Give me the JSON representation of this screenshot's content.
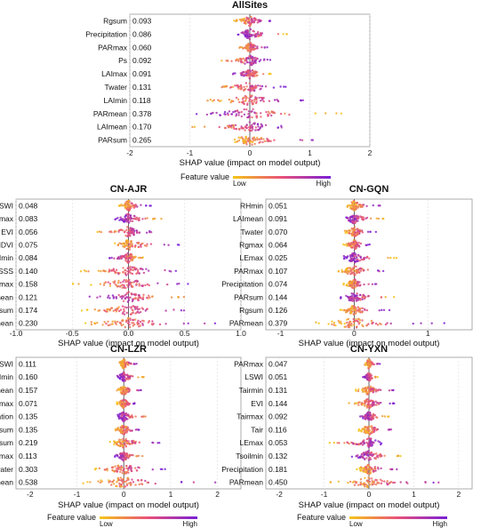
{
  "figure": {
    "xlabel": "SHAP value (impact on model output)",
    "legend_title": "Feature value",
    "legend_low": "Low",
    "legend_high": "High",
    "colors": {
      "low": "#f5c518",
      "mid": "#e8507a",
      "high": "#7a1fd6",
      "zero_line": "#555555",
      "grid": "#dddddd",
      "frame": "#999999"
    }
  },
  "chart_data": [
    {
      "type": "scatter",
      "title": "AllSites",
      "xlabel": "SHAP value (impact on model output)",
      "xlim": [
        -2,
        2
      ],
      "xticks": [
        "-2",
        "-1",
        "0",
        "1",
        "2"
      ],
      "features": [
        {
          "name": "Rgsum",
          "value": "0.093",
          "range": [
            -0.28,
            0.38
          ]
        },
        {
          "name": "Precipitation",
          "value": "0.086",
          "range": [
            -0.2,
            0.65
          ]
        },
        {
          "name": "PARmax",
          "value": "0.060",
          "range": [
            -0.18,
            0.3
          ]
        },
        {
          "name": "Ps",
          "value": "0.092",
          "range": [
            -0.6,
            0.35
          ]
        },
        {
          "name": "LAImax",
          "value": "0.091",
          "range": [
            -0.3,
            0.35
          ]
        },
        {
          "name": "Twater",
          "value": "0.131",
          "range": [
            -0.65,
            0.6
          ]
        },
        {
          "name": "LAImin",
          "value": "0.118",
          "range": [
            -0.85,
            1.0
          ]
        },
        {
          "name": "PARmean",
          "value": "0.378",
          "range": [
            -1.0,
            1.65
          ]
        },
        {
          "name": "LAImean",
          "value": "0.170",
          "range": [
            -1.0,
            0.6
          ]
        },
        {
          "name": "PARsum",
          "value": "0.265",
          "range": [
            -0.35,
            1.2
          ]
        }
      ]
    },
    {
      "type": "scatter",
      "title": "CN-AJR",
      "xlabel": "SHAP value (impact on model output)",
      "xlim": [
        -1.0,
        1.0
      ],
      "xticks": [
        "-1.0",
        "-0.5",
        "0.0",
        "0.5",
        "1.0"
      ],
      "features": [
        {
          "name": "LSWI",
          "value": "0.048",
          "range": [
            -0.1,
            0.2
          ]
        },
        {
          "name": "Tsoilmax",
          "value": "0.083",
          "range": [
            -0.12,
            0.35
          ]
        },
        {
          "name": "EVI",
          "value": "0.056",
          "range": [
            -0.3,
            0.25
          ]
        },
        {
          "name": "NDVI",
          "value": "0.075",
          "range": [
            -0.15,
            0.5
          ]
        },
        {
          "name": "LAImin",
          "value": "0.084",
          "range": [
            -0.18,
            0.15
          ]
        },
        {
          "name": "SSS",
          "value": "0.140",
          "range": [
            -0.45,
            0.45
          ]
        },
        {
          "name": "PARmax",
          "value": "0.158",
          "range": [
            -0.5,
            0.55
          ]
        },
        {
          "name": "LAImean",
          "value": "0.121",
          "range": [
            -0.35,
            0.55
          ]
        },
        {
          "name": "PARsum",
          "value": "0.174",
          "range": [
            -0.45,
            0.5
          ]
        },
        {
          "name": "PARmean",
          "value": "0.230",
          "range": [
            -0.5,
            0.8
          ]
        }
      ]
    },
    {
      "type": "scatter",
      "title": "CN-GQN",
      "xlabel": "SHAP value (impact on model output)",
      "xlim": [
        -1.2,
        1.6
      ],
      "xticks": [
        "-1",
        "0",
        "1"
      ],
      "features": [
        {
          "name": "RHmin",
          "value": "0.051",
          "range": [
            -0.1,
            0.35
          ]
        },
        {
          "name": "LAImean",
          "value": "0.091",
          "range": [
            -0.15,
            0.45
          ]
        },
        {
          "name": "Twater",
          "value": "0.070",
          "range": [
            -0.15,
            0.3
          ]
        },
        {
          "name": "Rgmax",
          "value": "0.064",
          "range": [
            -0.15,
            0.25
          ]
        },
        {
          "name": "LEmax",
          "value": "0.025",
          "range": [
            -0.15,
            0.6
          ]
        },
        {
          "name": "PARmax",
          "value": "0.107",
          "range": [
            -0.25,
            0.5
          ]
        },
        {
          "name": "Precipitation",
          "value": "0.074",
          "range": [
            -0.15,
            0.3
          ]
        },
        {
          "name": "PARsum",
          "value": "0.144",
          "range": [
            -0.2,
            0.55
          ]
        },
        {
          "name": "Rgsum",
          "value": "0.126",
          "range": [
            -0.2,
            0.5
          ]
        },
        {
          "name": "PARmean",
          "value": "0.379",
          "range": [
            -0.55,
            1.3
          ]
        }
      ]
    },
    {
      "type": "scatter",
      "title": "CN-LZR",
      "xlabel": "SHAP value (impact on model output)",
      "xlim": [
        -2.3,
        2.5
      ],
      "xticks": [
        "-2",
        "-1",
        "0",
        "1",
        "2"
      ],
      "features": [
        {
          "name": "LSWI",
          "value": "0.111",
          "range": [
            -0.1,
            0.35
          ]
        },
        {
          "name": "LAImin",
          "value": "0.160",
          "range": [
            -0.15,
            0.45
          ]
        },
        {
          "name": "LAImean",
          "value": "0.157",
          "range": [
            -0.15,
            0.4
          ]
        },
        {
          "name": "PARmax",
          "value": "0.071",
          "range": [
            -0.2,
            0.3
          ]
        },
        {
          "name": "Precipitation",
          "value": "0.135",
          "range": [
            -0.15,
            0.5
          ]
        },
        {
          "name": "Rgsum",
          "value": "0.135",
          "range": [
            -0.2,
            0.4
          ]
        },
        {
          "name": "PARsum",
          "value": "0.219",
          "range": [
            -0.3,
            0.8
          ]
        },
        {
          "name": "Rgmax",
          "value": "0.113",
          "range": [
            -0.2,
            0.4
          ]
        },
        {
          "name": "Twater",
          "value": "0.303",
          "range": [
            -0.7,
            0.9
          ]
        },
        {
          "name": "PARmean",
          "value": "0.538",
          "range": [
            -0.9,
            2.0
          ]
        }
      ]
    },
    {
      "type": "scatter",
      "title": "CN-YXN",
      "xlabel": "SHAP value (impact on model output)",
      "xlim": [
        -2.3,
        2.3
      ],
      "xticks": [
        "-2",
        "-1",
        "0",
        "1",
        "2"
      ],
      "features": [
        {
          "name": "PARmax",
          "value": "0.047",
          "range": [
            -0.1,
            0.25
          ]
        },
        {
          "name": "LSWI",
          "value": "0.051",
          "range": [
            -0.15,
            0.2
          ]
        },
        {
          "name": "Tairmin",
          "value": "0.131",
          "range": [
            -0.3,
            0.55
          ]
        },
        {
          "name": "EVI",
          "value": "0.144",
          "range": [
            -0.45,
            0.65
          ]
        },
        {
          "name": "Tairmax",
          "value": "0.092",
          "range": [
            -0.2,
            0.45
          ]
        },
        {
          "name": "Tair",
          "value": "0.116",
          "range": [
            -0.25,
            0.6
          ]
        },
        {
          "name": "LEmax",
          "value": "0.053",
          "range": [
            -1.0,
            0.3
          ]
        },
        {
          "name": "Tsoilmin",
          "value": "0.132",
          "range": [
            -0.4,
            0.9
          ]
        },
        {
          "name": "Precipitation",
          "value": "0.181",
          "range": [
            -0.3,
            0.7
          ]
        },
        {
          "name": "PARmean",
          "value": "0.450",
          "range": [
            -0.9,
            1.9
          ]
        }
      ]
    }
  ]
}
